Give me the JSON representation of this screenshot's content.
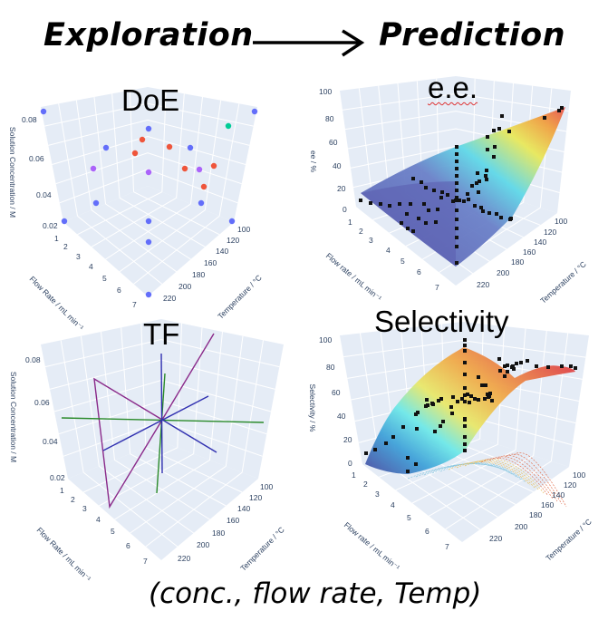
{
  "header": {
    "left": "Exploration",
    "right": "Prediction",
    "arrow_icon": "long-right-arrow"
  },
  "caption": "(conc., flow rate, Temp)",
  "colors": {
    "pane": "#e5ecf6",
    "axis_text": "#2a3f5f",
    "blue": "#636efa",
    "red": "#ef553b",
    "green": "#00cc96",
    "purple": "#ab63fa"
  },
  "panels": {
    "doe": {
      "title": "DoE",
      "z_label": "Solution Concentration / M",
      "x_label": "Flow Rate / mL min⁻¹",
      "y_label": "Temperature / °C",
      "z_ticks": [
        "0.08",
        "0.06",
        "0.04",
        "0.02"
      ],
      "x_ticks": [
        "1",
        "2",
        "3",
        "4",
        "5",
        "6",
        "7"
      ],
      "y_ticks": [
        "100",
        "120",
        "140",
        "160",
        "180",
        "200",
        "220"
      ]
    },
    "ee": {
      "title": "e.e.",
      "z_label": "ee / %",
      "x_label": "Flow rate / mL min⁻¹",
      "y_label": "Temperature / °C",
      "z_ticks": [
        "100",
        "80",
        "60",
        "40",
        "20",
        "0"
      ],
      "x_ticks": [
        "1",
        "2",
        "3",
        "4",
        "5",
        "6",
        "7"
      ],
      "y_ticks": [
        "100",
        "120",
        "140",
        "160",
        "180",
        "200",
        "220"
      ]
    },
    "tf": {
      "title": "TF",
      "z_label": "Solution Concentration / M",
      "x_label": "Flow Rate / mL min⁻¹",
      "y_label": "Temperature / °C",
      "z_ticks": [
        "0.08",
        "0.06",
        "0.04",
        "0.02"
      ],
      "x_ticks": [
        "1",
        "2",
        "3",
        "4",
        "5",
        "6",
        "7"
      ],
      "y_ticks": [
        "100",
        "120",
        "140",
        "160",
        "180",
        "200",
        "220"
      ]
    },
    "selectivity": {
      "title": "Selectivity",
      "z_label": "Selectivity / %",
      "x_label": "Flow rate / mL min⁻¹",
      "y_label": "Temperature / °C",
      "z_ticks": [
        "100",
        "80",
        "60",
        "40",
        "20",
        "0"
      ],
      "x_ticks": [
        "1",
        "2",
        "3",
        "4",
        "5",
        "6",
        "7"
      ],
      "y_ticks": [
        "100",
        "120",
        "140",
        "160",
        "180",
        "200",
        "220"
      ]
    }
  }
}
